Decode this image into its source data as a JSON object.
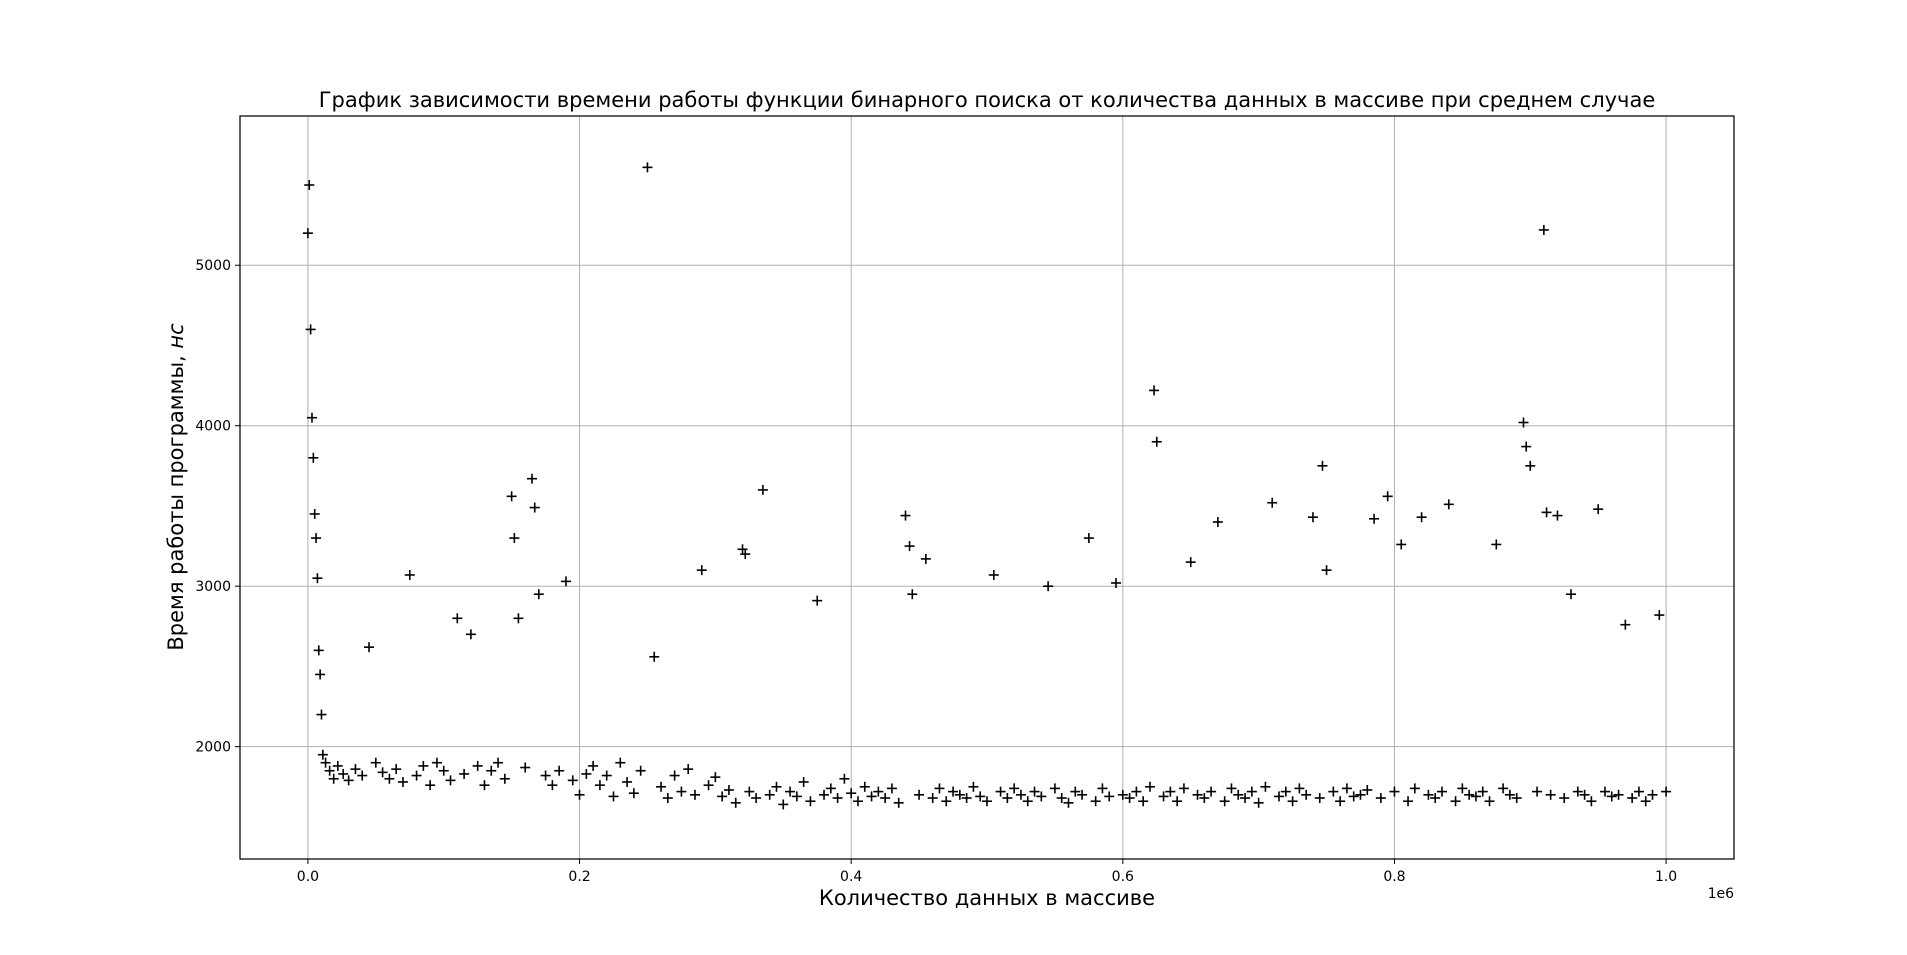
{
  "chart_data": {
    "type": "scatter",
    "title": "График зависимости времени работы функции бинарного поиска от количества данных в массиве при среднем случае",
    "xlabel": "Количество данных в массиве",
    "ylabel_main": "Время работы программы, ",
    "ylabel_unit": "нс",
    "x_offset_text": "1e6",
    "xlim": [
      -0.05,
      1.05
    ],
    "ylim": [
      1300,
      5930
    ],
    "xticks": [
      0.0,
      0.2,
      0.4,
      0.6,
      0.8,
      1.0
    ],
    "xtick_labels": [
      "0.0",
      "0.2",
      "0.4",
      "0.6",
      "0.8",
      "1.0"
    ],
    "yticks": [
      2000,
      3000,
      4000,
      5000
    ],
    "ytick_labels": [
      "2000",
      "3000",
      "4000",
      "5000"
    ],
    "grid": true,
    "marker": "+",
    "color": "#000000",
    "x_scale": 1000000,
    "series": [
      {
        "x": [
          0,
          1000,
          2000,
          3000,
          4000,
          5000,
          6000,
          7000,
          8000,
          9000,
          10000,
          11000,
          13000,
          16000,
          19000,
          22000,
          26000,
          30000,
          35000,
          40000,
          45000,
          50000,
          55000,
          60000,
          65000,
          70000,
          75000,
          80000,
          85000,
          90000,
          95000,
          100000,
          105000,
          110000,
          115000,
          120000,
          125000,
          130000,
          135000,
          140000,
          145000,
          150000,
          152000,
          155000,
          160000,
          165000,
          167000,
          170000,
          175000,
          180000,
          185000,
          190000,
          195000,
          200000,
          205000,
          210000,
          215000,
          220000,
          225000,
          230000,
          235000,
          240000,
          245000,
          250000,
          255000,
          260000,
          265000,
          270000,
          275000,
          280000,
          285000,
          290000,
          295000,
          300000,
          305000,
          310000,
          315000,
          320000,
          322000,
          325000,
          330000,
          335000,
          340000,
          345000,
          350000,
          355000,
          360000,
          365000,
          370000,
          375000,
          380000,
          385000,
          390000,
          395000,
          400000,
          405000,
          410000,
          415000,
          420000,
          425000,
          430000,
          435000,
          440000,
          443000,
          445000,
          450000,
          455000,
          460000,
          465000,
          470000,
          475000,
          480000,
          485000,
          490000,
          495000,
          500000,
          505000,
          510000,
          515000,
          520000,
          525000,
          530000,
          535000,
          540000,
          545000,
          550000,
          555000,
          560000,
          565000,
          570000,
          575000,
          580000,
          585000,
          590000,
          595000,
          600000,
          605000,
          610000,
          615000,
          620000,
          623000,
          625000,
          630000,
          635000,
          640000,
          645000,
          650000,
          655000,
          660000,
          665000,
          670000,
          675000,
          680000,
          685000,
          690000,
          695000,
          700000,
          705000,
          710000,
          715000,
          720000,
          725000,
          730000,
          735000,
          740000,
          745000,
          747000,
          750000,
          755000,
          760000,
          765000,
          770000,
          775000,
          780000,
          785000,
          790000,
          795000,
          800000,
          805000,
          810000,
          815000,
          820000,
          825000,
          830000,
          835000,
          840000,
          845000,
          850000,
          855000,
          860000,
          865000,
          870000,
          875000,
          880000,
          885000,
          890000,
          895000,
          897000,
          900000,
          905000,
          910000,
          912000,
          915000,
          920000,
          925000,
          930000,
          935000,
          940000,
          945000,
          950000,
          955000,
          960000,
          965000,
          970000,
          975000,
          980000,
          985000,
          990000,
          995000,
          1000000
        ],
        "y": [
          5200,
          5500,
          4600,
          4050,
          3800,
          3450,
          3300,
          3050,
          2600,
          2450,
          2200,
          1950,
          1900,
          1850,
          1800,
          1880,
          1830,
          1790,
          1860,
          1820,
          2620,
          1900,
          1840,
          1800,
          1860,
          1780,
          3070,
          1820,
          1880,
          1760,
          1900,
          1850,
          1790,
          2800,
          1830,
          2700,
          1880,
          1760,
          1850,
          1900,
          1800,
          3560,
          3300,
          2800,
          1870,
          3670,
          3490,
          2950,
          1820,
          1760,
          1850,
          3030,
          1790,
          1700,
          1830,
          1880,
          1760,
          1820,
          1690,
          1900,
          1780,
          1710,
          1850,
          5610,
          2560,
          1750,
          1680,
          1820,
          1720,
          1860,
          1700,
          3100,
          1760,
          1810,
          1690,
          1730,
          1650,
          3230,
          3200,
          1720,
          1680,
          3600,
          1700,
          1750,
          1640,
          1720,
          1690,
          1780,
          1660,
          2910,
          1700,
          1740,
          1680,
          1800,
          1710,
          1660,
          1750,
          1690,
          1720,
          1680,
          1740,
          1650,
          3440,
          3250,
          2950,
          1700,
          3170,
          1680,
          1740,
          1660,
          1720,
          1700,
          1680,
          1750,
          1690,
          1660,
          3070,
          1720,
          1680,
          1740,
          1700,
          1660,
          1720,
          1690,
          3000,
          1740,
          1680,
          1650,
          1720,
          1700,
          3300,
          1660,
          1740,
          1690,
          3020,
          1700,
          1680,
          1720,
          1660,
          1750,
          4220,
          3900,
          1690,
          1720,
          1660,
          1740,
          3150,
          1700,
          1680,
          1720,
          3400,
          1660,
          1740,
          1700,
          1680,
          1720,
          1650,
          1750,
          3520,
          1690,
          1720,
          1660,
          1740,
          1700,
          3430,
          1680,
          3750,
          3100,
          1720,
          1660,
          1740,
          1690,
          1700,
          1730,
          3420,
          1680,
          3560,
          1720,
          3260,
          1660,
          1740,
          3430,
          1700,
          1680,
          1720,
          3510,
          1660,
          1740,
          1700,
          1690,
          1720,
          1660,
          3260,
          1740,
          1700,
          1680,
          4020,
          3870,
          3750,
          1720,
          5220,
          3460,
          1700,
          3440,
          1680,
          2950,
          1720,
          1700,
          1660,
          3480,
          1720,
          1690,
          1700,
          2760,
          1680,
          1720,
          1660,
          1700,
          2820,
          1720
        ]
      }
    ]
  }
}
